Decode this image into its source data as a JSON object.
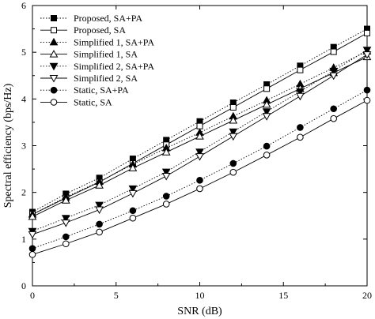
{
  "chart_data": {
    "type": "line",
    "xlabel": "SNR (dB)",
    "ylabel": "Spectral efficiency (bps/Hz)",
    "xlim": [
      0,
      20
    ],
    "ylim": [
      0,
      6
    ],
    "xticks": [
      0,
      5,
      10,
      15,
      20
    ],
    "yticks": [
      0,
      1,
      2,
      3,
      4,
      5,
      6
    ],
    "grid": false,
    "legend_position": "top-left",
    "x": [
      0,
      2,
      4,
      6,
      8,
      10,
      12,
      14,
      16,
      18,
      20
    ],
    "series": [
      {
        "name": "Proposed, SA+PA",
        "marker": "square-filled",
        "line": "dotted",
        "values": [
          1.58,
          1.97,
          2.31,
          2.72,
          3.12,
          3.52,
          3.92,
          4.31,
          4.71,
          5.11,
          5.5
        ]
      },
      {
        "name": "Proposed, SA",
        "marker": "square-open",
        "line": "solid",
        "values": [
          1.53,
          1.88,
          2.22,
          2.62,
          3.02,
          3.42,
          3.82,
          4.22,
          4.62,
          5.01,
          5.41
        ]
      },
      {
        "name": "Simplified 1, SA+PA",
        "marker": "triangle-up-filled",
        "line": "dotted",
        "values": [
          1.53,
          1.9,
          2.23,
          2.6,
          2.95,
          3.28,
          3.63,
          3.97,
          4.32,
          4.67,
          5.02
        ]
      },
      {
        "name": "Simplified 1, SA",
        "marker": "triangle-up-open",
        "line": "solid",
        "values": [
          1.48,
          1.83,
          2.15,
          2.52,
          2.86,
          3.2,
          3.54,
          3.88,
          4.22,
          4.56,
          4.9
        ]
      },
      {
        "name": "Simplified 2, SA+PA",
        "marker": "triangle-down-filled",
        "line": "dotted",
        "values": [
          1.17,
          1.45,
          1.73,
          2.08,
          2.44,
          2.87,
          3.3,
          3.73,
          4.16,
          4.6,
          5.05
        ]
      },
      {
        "name": "Simplified 2, SA",
        "marker": "triangle-down-open",
        "line": "solid",
        "values": [
          1.1,
          1.35,
          1.63,
          1.98,
          2.35,
          2.77,
          3.2,
          3.63,
          4.06,
          4.5,
          4.95
        ]
      },
      {
        "name": "Static, SA+PA",
        "marker": "circle-filled",
        "line": "dotted",
        "values": [
          0.8,
          1.05,
          1.32,
          1.61,
          1.92,
          2.26,
          2.62,
          2.99,
          3.39,
          3.79,
          4.19
        ]
      },
      {
        "name": "Static, SA",
        "marker": "circle-open",
        "line": "solid",
        "values": [
          0.67,
          0.9,
          1.15,
          1.45,
          1.75,
          2.08,
          2.43,
          2.8,
          3.18,
          3.58,
          3.97
        ]
      }
    ]
  }
}
